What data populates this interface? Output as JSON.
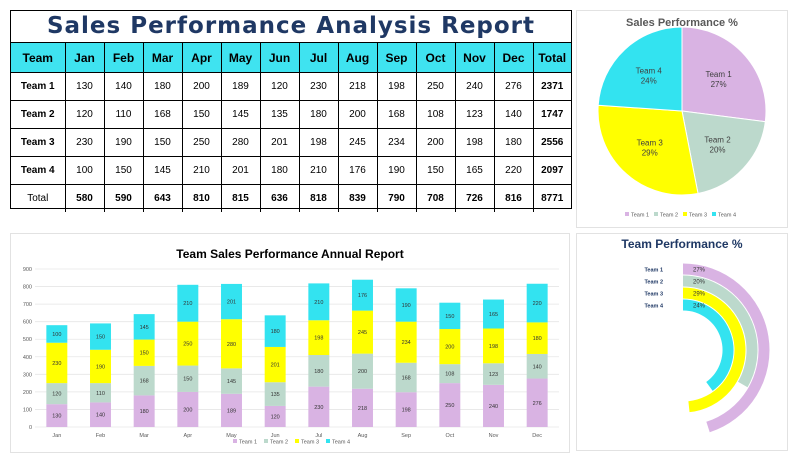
{
  "report": {
    "title": "Sales Performance Analysis Report",
    "headers": [
      "Team",
      "Jan",
      "Feb",
      "Mar",
      "Apr",
      "May",
      "Jun",
      "Jul",
      "Aug",
      "Sep",
      "Oct",
      "Nov",
      "Dec",
      "Total"
    ],
    "rows": [
      {
        "team": "Team 1",
        "values": [
          "130",
          "140",
          "180",
          "200",
          "189",
          "120",
          "230",
          "218",
          "198",
          "250",
          "240",
          "276"
        ],
        "total": "2371"
      },
      {
        "team": "Team 2",
        "values": [
          "120",
          "110",
          "168",
          "150",
          "145",
          "135",
          "180",
          "200",
          "168",
          "108",
          "123",
          "140"
        ],
        "total": "1747"
      },
      {
        "team": "Team 3",
        "values": [
          "230",
          "190",
          "150",
          "250",
          "280",
          "201",
          "198",
          "245",
          "234",
          "200",
          "198",
          "180"
        ],
        "total": "2556"
      },
      {
        "team": "Team 4",
        "values": [
          "100",
          "150",
          "145",
          "210",
          "201",
          "180",
          "210",
          "176",
          "190",
          "150",
          "165",
          "220"
        ],
        "total": "2097"
      }
    ],
    "total_row": {
      "label": "Total",
      "values": [
        "580",
        "590",
        "643",
        "810",
        "815",
        "636",
        "818",
        "839",
        "790",
        "708",
        "726",
        "816"
      ],
      "total": "8771"
    }
  },
  "colors": {
    "team1": "#d9b3e3",
    "team2": "#bcd9cc",
    "team3": "#ffff00",
    "team4": "#33e3f0",
    "header": "#3fe3f0",
    "title": "#1f3864"
  },
  "chart_data": [
    {
      "type": "pie",
      "title": "Sales Performance %",
      "labels": [
        "Team 1",
        "Team 2",
        "Team 3",
        "Team 4"
      ],
      "values": [
        2371,
        1747,
        2556,
        2097
      ],
      "percent_labels": [
        "27%",
        "20%",
        "29%",
        "24%"
      ],
      "legend": "bottom"
    },
    {
      "type": "bar",
      "stacked": true,
      "title": "Team Sales Performance Annual Report",
      "categories": [
        "Jan",
        "Feb",
        "Mar",
        "Apr",
        "May",
        "Jun",
        "Jul",
        "Aug",
        "Sep",
        "Oct",
        "Nov",
        "Dec"
      ],
      "series": [
        {
          "name": "Team 1",
          "values": [
            130,
            140,
            180,
            200,
            189,
            120,
            230,
            218,
            198,
            250,
            240,
            276
          ]
        },
        {
          "name": "Team 2",
          "values": [
            120,
            110,
            168,
            150,
            145,
            135,
            180,
            200,
            168,
            108,
            123,
            140
          ]
        },
        {
          "name": "Team 3",
          "values": [
            230,
            190,
            150,
            250,
            280,
            201,
            198,
            245,
            234,
            200,
            198,
            180
          ]
        },
        {
          "name": "Team 4",
          "values": [
            100,
            150,
            145,
            210,
            201,
            180,
            210,
            176,
            190,
            150,
            165,
            220
          ]
        }
      ],
      "ylim": [
        0,
        900
      ],
      "yticks": [
        0,
        100,
        200,
        300,
        400,
        500,
        600,
        700,
        800,
        900
      ],
      "grid": true,
      "legend": "bottom"
    },
    {
      "type": "radial-bar",
      "title": "Team Performance %",
      "labels": [
        "Team 1",
        "Team 2",
        "Team 3",
        "Team 4"
      ],
      "values": [
        27,
        20,
        29,
        24
      ],
      "percent_labels": [
        "27%",
        "20%",
        "29%",
        "24%"
      ]
    }
  ]
}
